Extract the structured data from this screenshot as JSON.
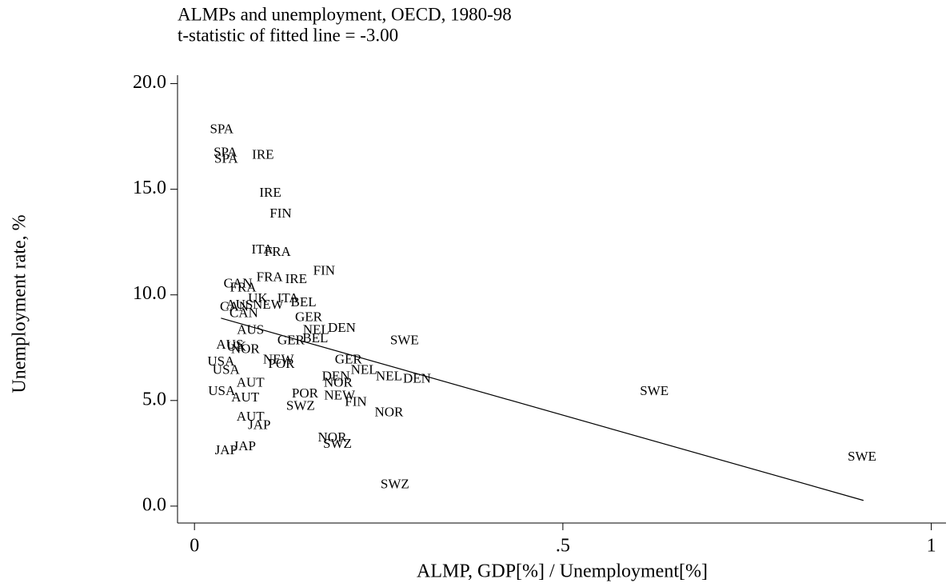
{
  "chart_data": {
    "type": "scatter",
    "title": "ALMPs and unemployment, OECD, 1980-98",
    "subtitle": "t-statistic of fitted line = -3.00",
    "x_label": "ALMP, GDP[%] / Unemployment[%]",
    "y_label": "Unemployment rate, %",
    "xlim": [
      -0.023,
      1.02
    ],
    "ylim": [
      -0.8,
      20.4
    ],
    "xticks": [
      0,
      {
        "value": 0.5,
        "label": ".5"
      },
      1
    ],
    "yticks": [
      {
        "value": 0,
        "label": "0.0"
      },
      {
        "value": 5,
        "label": "5.0"
      },
      {
        "value": 10,
        "label": "10.0"
      },
      {
        "value": 15,
        "label": "15.0"
      },
      {
        "value": 20,
        "label": "20.0"
      }
    ],
    "labels": [
      "SPA",
      "SPA",
      "SPA",
      "IRE",
      "IRE",
      "FIN",
      "ITA",
      "FRA",
      "FIN",
      "FRA",
      "IRE",
      "CAN",
      "FRA",
      "UK",
      "ITA",
      "AUS",
      "NEW",
      "BEL",
      "CAN",
      "CAN",
      "GER",
      "AUS",
      "NEL",
      "DEN",
      "BEL",
      "GER",
      "SWE",
      "AUS",
      "UK",
      "NOR",
      "USA",
      "NEW",
      "POR",
      "GER",
      "USA",
      "NEL",
      "NEL",
      "DEN",
      "DEN",
      "NOR",
      "AUT",
      "SWE",
      "USA",
      "POR",
      "AUT",
      "NEW",
      "FIN",
      "SWZ",
      "NOR",
      "AUT",
      "JAP",
      "NOR",
      "SWZ",
      "JAP",
      "JAP",
      "SWE",
      "SWZ"
    ],
    "x": [
      0.037,
      0.042,
      0.043,
      0.093,
      0.103,
      0.117,
      0.092,
      0.113,
      0.176,
      0.102,
      0.138,
      0.059,
      0.066,
      0.086,
      0.127,
      0.061,
      0.1,
      0.148,
      0.054,
      0.067,
      0.155,
      0.076,
      0.165,
      0.2,
      0.164,
      0.131,
      0.285,
      0.048,
      0.057,
      0.069,
      0.036,
      0.114,
      0.118,
      0.209,
      0.043,
      0.23,
      0.264,
      0.302,
      0.192,
      0.195,
      0.076,
      0.624,
      0.037,
      0.15,
      0.069,
      0.197,
      0.219,
      0.144,
      0.264,
      0.076,
      0.088,
      0.187,
      0.194,
      0.068,
      0.043,
      0.906,
      0.272
    ],
    "values": [
      17.8,
      16.7,
      16.4,
      16.6,
      14.8,
      13.8,
      12.1,
      12.0,
      11.1,
      10.8,
      10.7,
      10.5,
      10.3,
      9.8,
      9.8,
      9.5,
      9.5,
      9.6,
      9.4,
      9.1,
      8.9,
      8.3,
      8.3,
      8.4,
      7.9,
      7.8,
      7.8,
      7.6,
      7.5,
      7.4,
      6.8,
      6.9,
      6.7,
      6.9,
      6.4,
      6.4,
      6.1,
      6.0,
      6.1,
      5.8,
      5.8,
      5.4,
      5.4,
      5.3,
      5.1,
      5.2,
      4.9,
      4.7,
      4.4,
      4.2,
      3.8,
      3.2,
      2.9,
      2.8,
      2.6,
      2.3,
      1.0
    ],
    "fit": {
      "x": [
        0.036,
        0.908
      ],
      "values": [
        8.9,
        0.27
      ]
    },
    "color": "#000000"
  }
}
